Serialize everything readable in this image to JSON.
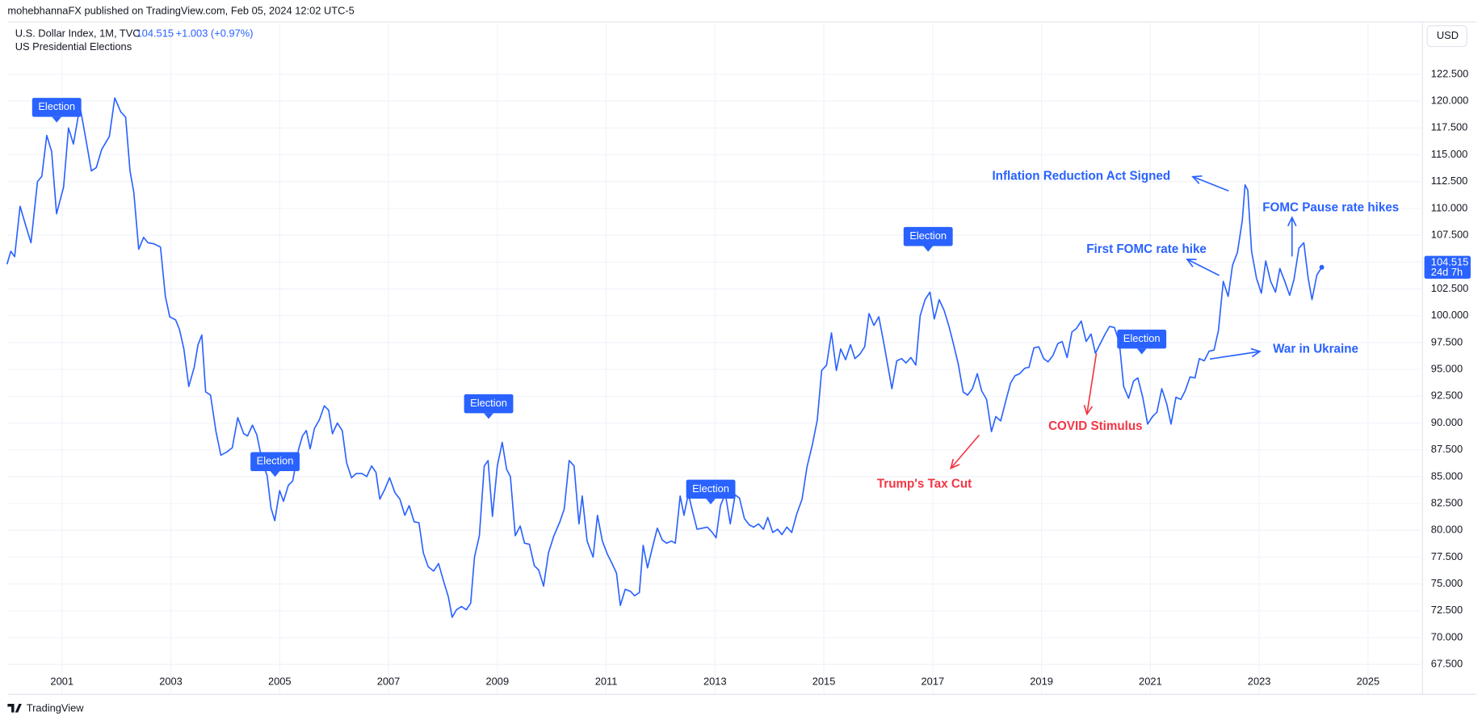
{
  "header": {
    "published": "mohebhannaFX published on TradingView.com, Feb 05, 2024 12:02 UTC-5"
  },
  "chart_data": {
    "type": "line",
    "legend": {
      "symbol": "U.S. Dollar Index, 1M, TVC",
      "price": 104.515,
      "change": "+1.003 (+0.97%)",
      "indicator": "US Presidential Elections"
    },
    "currency": "USD",
    "price_tag": {
      "price": 104.515,
      "countdown": "24d 7h"
    },
    "color": "#2962ff",
    "grid": true,
    "xlim": [
      2000,
      2026
    ],
    "xticks": [
      2001,
      2003,
      2005,
      2007,
      2009,
      2011,
      2013,
      2015,
      2017,
      2019,
      2021,
      2023,
      2025
    ],
    "ylim": [
      64.8,
      127.3
    ],
    "yticks": [
      {
        "value": 67.5,
        "label": "67.500"
      },
      {
        "value": 70,
        "label": "70.000"
      },
      {
        "value": 72.5,
        "label": "72.500"
      },
      {
        "value": 75,
        "label": "75.000"
      },
      {
        "value": 77.5,
        "label": "77.500"
      },
      {
        "value": 80,
        "label": "80.000"
      },
      {
        "value": 82.5,
        "label": "82.500"
      },
      {
        "value": 85,
        "label": "85.000"
      },
      {
        "value": 87.5,
        "label": "87.500"
      },
      {
        "value": 90,
        "label": "90.000"
      },
      {
        "value": 92.5,
        "label": "92.500"
      },
      {
        "value": 95,
        "label": "95.000"
      },
      {
        "value": 97.5,
        "label": "97.500"
      },
      {
        "value": 100,
        "label": "100.000"
      },
      {
        "value": 102.5,
        "label": "102.500"
      },
      {
        "value": 105,
        "label": "105.000"
      },
      {
        "value": 107.5,
        "label": "107.500"
      },
      {
        "value": 110,
        "label": "110.000"
      },
      {
        "value": 112.5,
        "label": "112.500"
      },
      {
        "value": 115,
        "label": "115.000"
      },
      {
        "value": 117.5,
        "label": "117.500"
      },
      {
        "value": 120,
        "label": "120.000"
      },
      {
        "value": 122.5,
        "label": "122.500"
      }
    ],
    "x": [
      1999.99,
      2000.06,
      2000.13,
      2000.23,
      2000.34,
      2000.43,
      2000.55,
      2000.63,
      2000.72,
      2000.81,
      2000.9,
      2001.03,
      2001.12,
      2001.21,
      2001.33,
      2001.42,
      2001.54,
      2001.63,
      2001.73,
      2001.87,
      2001.97,
      2002.08,
      2002.17,
      2002.25,
      2002.32,
      2002.41,
      2002.5,
      2002.58,
      2002.69,
      2002.81,
      2002.9,
      2002.98,
      2003.09,
      2003.16,
      2003.24,
      2003.33,
      2003.43,
      2003.5,
      2003.57,
      2003.64,
      2003.73,
      2003.83,
      2003.92,
      2004.03,
      2004.13,
      2004.23,
      2004.34,
      2004.41,
      2004.5,
      2004.58,
      2004.69,
      2004.77,
      2004.84,
      2004.91,
      2005.0,
      2005.07,
      2005.16,
      2005.24,
      2005.35,
      2005.42,
      2005.49,
      2005.56,
      2005.64,
      2005.73,
      2005.82,
      2005.9,
      2005.97,
      2006.06,
      2006.15,
      2006.23,
      2006.32,
      2006.41,
      2006.51,
      2006.6,
      2006.69,
      2006.77,
      2006.84,
      2006.93,
      2007.02,
      2007.12,
      2007.21,
      2007.3,
      2007.38,
      2007.47,
      2007.56,
      2007.64,
      2007.73,
      2007.83,
      2007.92,
      2008.01,
      2008.1,
      2008.17,
      2008.25,
      2008.34,
      2008.43,
      2008.51,
      2008.58,
      2008.67,
      2008.76,
      2008.83,
      2008.91,
      2009.0,
      2009.09,
      2009.17,
      2009.24,
      2009.33,
      2009.42,
      2009.5,
      2009.59,
      2009.68,
      2009.76,
      2009.85,
      2009.94,
      2010.04,
      2010.15,
      2010.23,
      2010.32,
      2010.41,
      2010.5,
      2010.56,
      2010.65,
      2010.76,
      2010.84,
      2010.93,
      2011.02,
      2011.1,
      2011.19,
      2011.26,
      2011.35,
      2011.45,
      2011.52,
      2011.61,
      2011.68,
      2011.76,
      2011.85,
      2011.94,
      2012.03,
      2012.11,
      2012.2,
      2012.27,
      2012.36,
      2012.43,
      2012.51,
      2012.6,
      2012.67,
      2012.77,
      2012.86,
      2012.95,
      2013.02,
      2013.1,
      2013.19,
      2013.28,
      2013.37,
      2013.45,
      2013.54,
      2013.63,
      2013.71,
      2013.8,
      2013.89,
      2013.97,
      2014.06,
      2014.15,
      2014.23,
      2014.32,
      2014.41,
      2014.5,
      2014.6,
      2014.69,
      2014.79,
      2014.88,
      2014.96,
      2015.05,
      2015.14,
      2015.23,
      2015.31,
      2015.4,
      2015.49,
      2015.57,
      2015.66,
      2015.75,
      2015.83,
      2015.92,
      2016.01,
      2016.1,
      2016.17,
      2016.25,
      2016.34,
      2016.43,
      2016.51,
      2016.6,
      2016.69,
      2016.77,
      2016.86,
      2016.95,
      2017.03,
      2017.12,
      2017.21,
      2017.3,
      2017.38,
      2017.47,
      2017.56,
      2017.64,
      2017.73,
      2017.82,
      2017.9,
      2017.99,
      2018.08,
      2018.16,
      2018.25,
      2018.34,
      2018.43,
      2018.51,
      2018.6,
      2018.69,
      2018.77,
      2018.86,
      2018.95,
      2019.04,
      2019.12,
      2019.21,
      2019.3,
      2019.38,
      2019.47,
      2019.56,
      2019.64,
      2019.73,
      2019.82,
      2019.91,
      2019.99,
      2020.08,
      2020.17,
      2020.25,
      2020.34,
      2020.43,
      2020.51,
      2020.6,
      2020.69,
      2020.77,
      2020.86,
      2020.95,
      2021.04,
      2021.12,
      2021.21,
      2021.3,
      2021.38,
      2021.47,
      2021.56,
      2021.64,
      2021.73,
      2021.82,
      2021.9,
      2021.99,
      2022.08,
      2022.17,
      2022.25,
      2022.34,
      2022.43,
      2022.51,
      2022.6,
      2022.69,
      2022.74,
      2022.79,
      2022.86,
      2022.95,
      2023.04,
      2023.12,
      2023.21,
      2023.3,
      2023.38,
      2023.47,
      2023.56,
      2023.64,
      2023.73,
      2023.82,
      2023.9,
      2023.97,
      2024.06,
      2024.15
    ],
    "values": [
      104.8,
      106.0,
      105.5,
      110.2,
      108.3,
      106.8,
      112.5,
      113.0,
      116.8,
      115.3,
      109.5,
      112.0,
      117.5,
      116.0,
      119.5,
      117.0,
      113.5,
      113.8,
      115.5,
      116.7,
      120.3,
      119.0,
      118.5,
      113.5,
      111.5,
      106.2,
      107.3,
      106.8,
      106.7,
      106.4,
      101.8,
      99.9,
      99.6,
      98.7,
      96.9,
      93.4,
      95.2,
      97.3,
      98.2,
      92.9,
      92.6,
      89.2,
      87.0,
      87.3,
      87.7,
      90.5,
      89.0,
      88.8,
      89.8,
      88.9,
      86.2,
      85.1,
      82.1,
      80.9,
      83.7,
      82.7,
      84.2,
      84.6,
      87.6,
      88.8,
      89.3,
      87.6,
      89.5,
      90.3,
      91.6,
      91.2,
      89.0,
      90.0,
      89.3,
      86.3,
      84.9,
      85.3,
      85.3,
      85.0,
      86.0,
      85.4,
      82.9,
      83.8,
      84.9,
      83.5,
      82.9,
      81.4,
      82.3,
      80.8,
      80.7,
      77.9,
      76.6,
      76.2,
      76.9,
      75.3,
      73.8,
      71.9,
      72.6,
      72.9,
      72.6,
      73.2,
      77.5,
      79.5,
      86.0,
      86.5,
      81.3,
      86.0,
      88.2,
      85.7,
      85.0,
      79.5,
      80.4,
      78.8,
      78.7,
      76.7,
      76.3,
      74.8,
      77.9,
      79.5,
      80.8,
      82.0,
      86.5,
      86.0,
      80.6,
      83.2,
      79.0,
      77.5,
      81.4,
      79.0,
      77.8,
      77.0,
      76.0,
      73.0,
      74.5,
      74.3,
      73.9,
      74.2,
      78.6,
      76.5,
      78.4,
      80.2,
      79.1,
      78.8,
      79.0,
      78.8,
      83.2,
      81.4,
      83.4,
      81.5,
      80.1,
      80.2,
      80.3,
      79.8,
      79.3,
      82.3,
      83.4,
      80.6,
      83.3,
      83.0,
      81.1,
      80.5,
      80.3,
      80.6,
      80.1,
      81.2,
      79.8,
      80.1,
      79.6,
      80.3,
      79.8,
      81.5,
      82.9,
      85.9,
      88.0,
      90.3,
      94.9,
      95.4,
      98.4,
      94.9,
      96.9,
      95.9,
      97.3,
      96.0,
      96.4,
      97.1,
      100.2,
      99.1,
      99.9,
      97.5,
      95.5,
      93.2,
      95.8,
      96.0,
      95.6,
      96.1,
      95.4,
      100.0,
      101.5,
      102.2,
      99.7,
      101.5,
      100.5,
      99.0,
      97.4,
      95.5,
      92.9,
      92.6,
      93.2,
      94.6,
      93.0,
      92.2,
      89.2,
      90.6,
      90.2,
      92.0,
      93.7,
      94.4,
      94.6,
      95.1,
      95.2,
      97.0,
      97.1,
      96.0,
      95.7,
      96.3,
      97.4,
      97.6,
      96.1,
      98.5,
      98.8,
      99.5,
      97.6,
      98.3,
      96.5,
      97.4,
      98.3,
      99.0,
      98.9,
      97.5,
      93.4,
      92.3,
      93.9,
      94.2,
      92.4,
      89.9,
      90.6,
      91.0,
      93.2,
      91.8,
      89.9,
      92.4,
      92.2,
      93.0,
      94.3,
      94.2,
      96.0,
      95.8,
      96.7,
      96.8,
      98.6,
      103.2,
      101.8,
      104.7,
      105.9,
      108.9,
      112.2,
      111.7,
      106.0,
      103.5,
      102.1,
      105.1,
      103.2,
      102.2,
      104.4,
      103.2,
      101.9,
      103.4,
      106.3,
      106.8,
      103.5,
      101.5,
      103.8,
      104.515
    ],
    "annotations": [
      "Election",
      "Election",
      "Election",
      "Election",
      "Election",
      "Election",
      "Inflation Reduction Act Signed",
      "FOMC Pause rate hikes",
      "First FOMC rate hike",
      "War in Ukraine",
      "Trump's Tax Cut",
      "COVID Stimulus"
    ]
  },
  "footer": {
    "brand": "TradingView"
  }
}
